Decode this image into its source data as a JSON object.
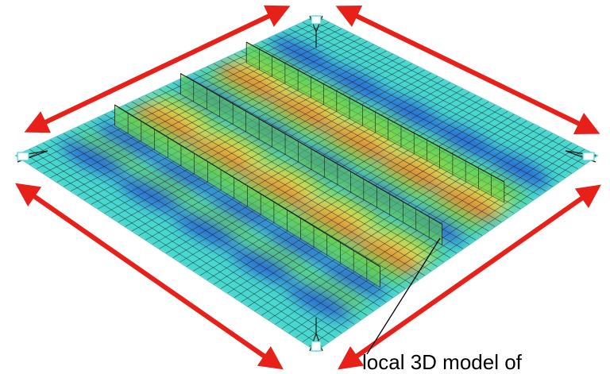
{
  "figure": {
    "annotation": "local 3D model of"
  },
  "colors": {
    "arrow": "#e8201a",
    "mesh_line": "#1a1a1a",
    "plate_base": "#48d8d0",
    "contour_low": "#1f4fd6",
    "contour_mid": "#64d24a",
    "contour_high_1": "#f2e84a",
    "contour_high_2": "#f07020",
    "pointer_line": "#000000"
  },
  "icons": {
    "arrows": [
      "double-headed-arrow-icon",
      "double-headed-arrow-icon",
      "double-headed-arrow-icon",
      "double-headed-arrow-icon"
    ]
  }
}
